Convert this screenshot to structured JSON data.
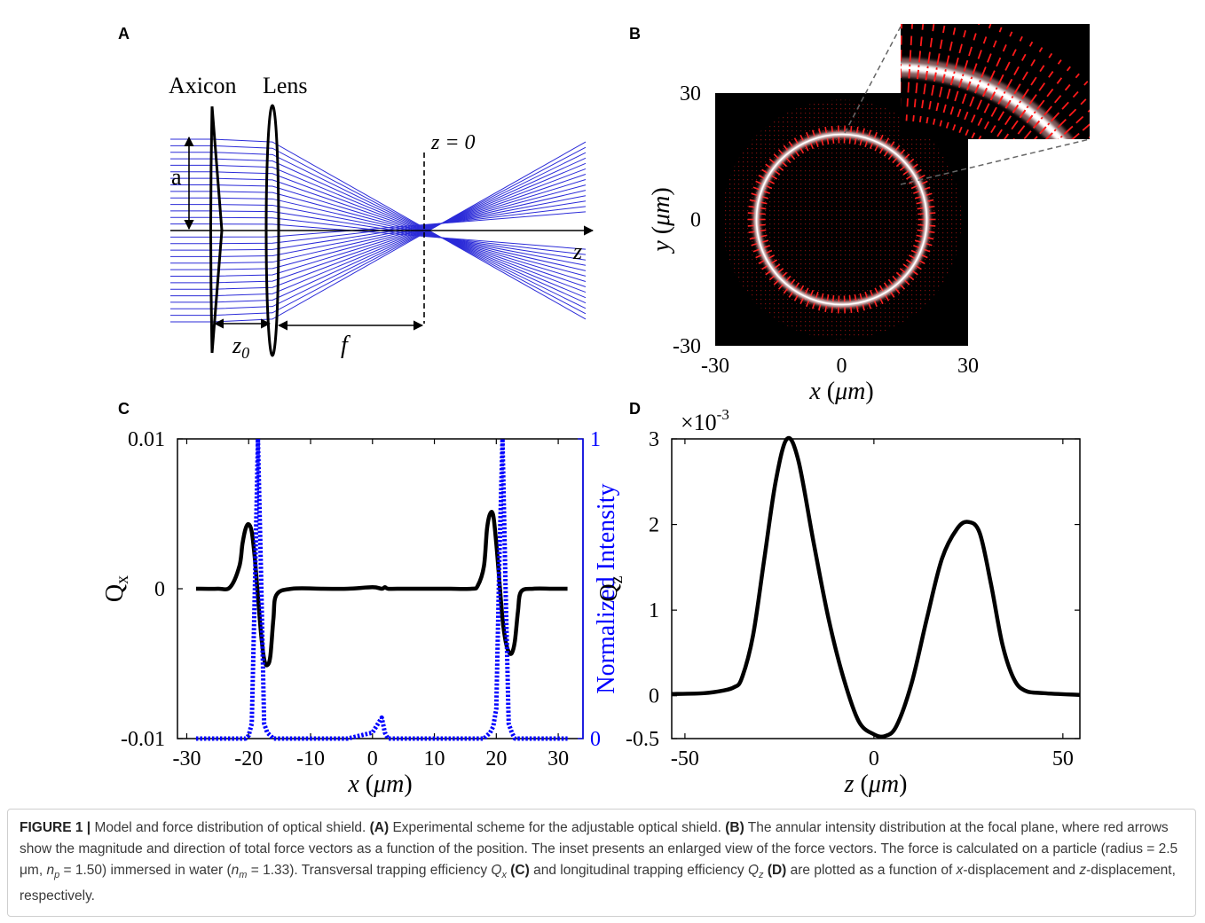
{
  "panel_labels": [
    "A",
    "B",
    "C",
    "D"
  ],
  "scheme": {
    "axicon": "Axicon",
    "lens": "Lens",
    "plane": "z = 0",
    "aperture": "a",
    "axis": "z",
    "spacing": [
      "z",
      "0"
    ],
    "focal": "f"
  },
  "chart_data": [
    {
      "type": "image",
      "xlabel": [
        "x",
        " (",
        "μm",
        ")"
      ],
      "ylabel": [
        "y",
        " (",
        "μm",
        ")"
      ],
      "xlim": [
        -30,
        30
      ],
      "ylim": [
        -30,
        30
      ],
      "xticks": [
        -30,
        0,
        30
      ],
      "yticks": [
        -30,
        0,
        30
      ]
    },
    {
      "type": "line",
      "xlabel": [
        "x",
        " (",
        "μm",
        ")"
      ],
      "ylabel": [
        "Q",
        "x"
      ],
      "y2label": "Normalized Intensity",
      "xlim": [
        -31.5,
        34
      ],
      "ylim": [
        -0.01,
        0.01
      ],
      "y2lim": [
        0,
        1
      ],
      "xticks": [
        -30,
        -20,
        -10,
        0,
        10,
        20,
        30
      ],
      "yticks": [
        -0.01,
        0,
        0.01
      ],
      "y2ticks": [
        0,
        1
      ],
      "y2color": "#0000ff",
      "x": [
        -28.5,
        -25,
        -23,
        -21.5,
        -21,
        -20.5,
        -20,
        -19.5,
        -19,
        -18.5,
        -18,
        -17.5,
        -17,
        -16.5,
        -16,
        -15.5,
        -13,
        -8,
        -4,
        0,
        1.5,
        2,
        2.5,
        4,
        8,
        12,
        16,
        17,
        18,
        18.5,
        19,
        19.5,
        20,
        20.5,
        21,
        21.5,
        22,
        22.5,
        23,
        23.5,
        24,
        26,
        29,
        31.5
      ],
      "series": [
        {
          "color": "#000000",
          "line_style": "solid",
          "values": [
            0,
            0,
            0.0001,
            0.0015,
            0.003,
            0.004,
            0.0043,
            0.0038,
            0.002,
            -0.0005,
            -0.003,
            -0.0047,
            -0.0051,
            -0.0045,
            -0.002,
            -0.0004,
            0,
            0,
            0,
            0.0001,
            0,
            0.0001,
            0,
            0,
            0,
            0,
            0,
            0.0002,
            0.0015,
            0.004,
            0.005,
            0.0049,
            0.003,
            0.0005,
            -0.002,
            -0.0035,
            -0.0042,
            -0.0043,
            -0.0035,
            -0.0015,
            -0.0002,
            0,
            0,
            0
          ]
        },
        {
          "color": "#0000ff",
          "line_style": "dotted",
          "axis": "y2",
          "values": [
            0,
            0,
            0,
            0,
            0,
            0,
            0.01,
            0.05,
            0.5,
            1,
            0.55,
            0.05,
            0.02,
            0.01,
            0,
            0,
            0,
            0,
            0,
            0.02,
            0.07,
            0.02,
            0,
            0,
            0,
            0,
            0,
            0,
            0,
            0.01,
            0.02,
            0.04,
            0.1,
            0.6,
            1,
            0.5,
            0.05,
            0.02,
            0,
            0,
            0,
            0,
            0,
            0
          ]
        }
      ]
    },
    {
      "type": "line",
      "xlabel": [
        "z",
        " (",
        "μm",
        ")"
      ],
      "ylabel": [
        "Q",
        "z"
      ],
      "y_scale": [
        "×10",
        "-3"
      ],
      "xlim": [
        -53.5,
        54.5
      ],
      "ylim": [
        -0.5,
        3
      ],
      "xticks": [
        -50,
        0,
        50
      ],
      "yticks": [
        -0.5,
        0,
        1,
        2,
        3
      ],
      "x": [
        -53.5,
        -45,
        -40,
        -37,
        -35,
        -32,
        -29,
        -26,
        -23,
        -20,
        -16,
        -12,
        -8,
        -4,
        0,
        3,
        6,
        10,
        14,
        18,
        22,
        25,
        28,
        31,
        34,
        37,
        40,
        45,
        54.5
      ],
      "series": [
        {
          "color": "#000000",
          "line_style": "solid",
          "values": [
            0.02,
            0.03,
            0.06,
            0.1,
            0.2,
            0.7,
            1.6,
            2.5,
            3,
            2.75,
            1.8,
            0.9,
            0.2,
            -0.3,
            -0.45,
            -0.47,
            -0.35,
            0.15,
            0.9,
            1.6,
            1.95,
            2.03,
            1.9,
            1.3,
            0.6,
            0.2,
            0.06,
            0.03,
            0.01
          ]
        }
      ]
    }
  ],
  "caption": [
    "FIGURE 1 |",
    " Model and force distribution of optical shield. ",
    "(A)",
    " Experimental scheme for the adjustable optical shield. ",
    "(B)",
    " The annular intensity distribution at the focal plane, where red arrows show the magnitude and direction of total force vectors as a function of the position. The inset presents an enlarged view of the force vectors. The force is calculated on a particle (radius = 2.5 μm, ",
    "n",
    "p",
    " = 1.50) immersed in water (",
    "n",
    "m",
    " = 1.33). Transversal trapping efficiency ",
    "Q",
    "x",
    " (C)",
    " and longitudinal trapping efficiency ",
    "Q",
    "z",
    " (D)",
    " are plotted as a function of ",
    "x",
    "-displacement and ",
    "z",
    "-displacement, respectively."
  ]
}
